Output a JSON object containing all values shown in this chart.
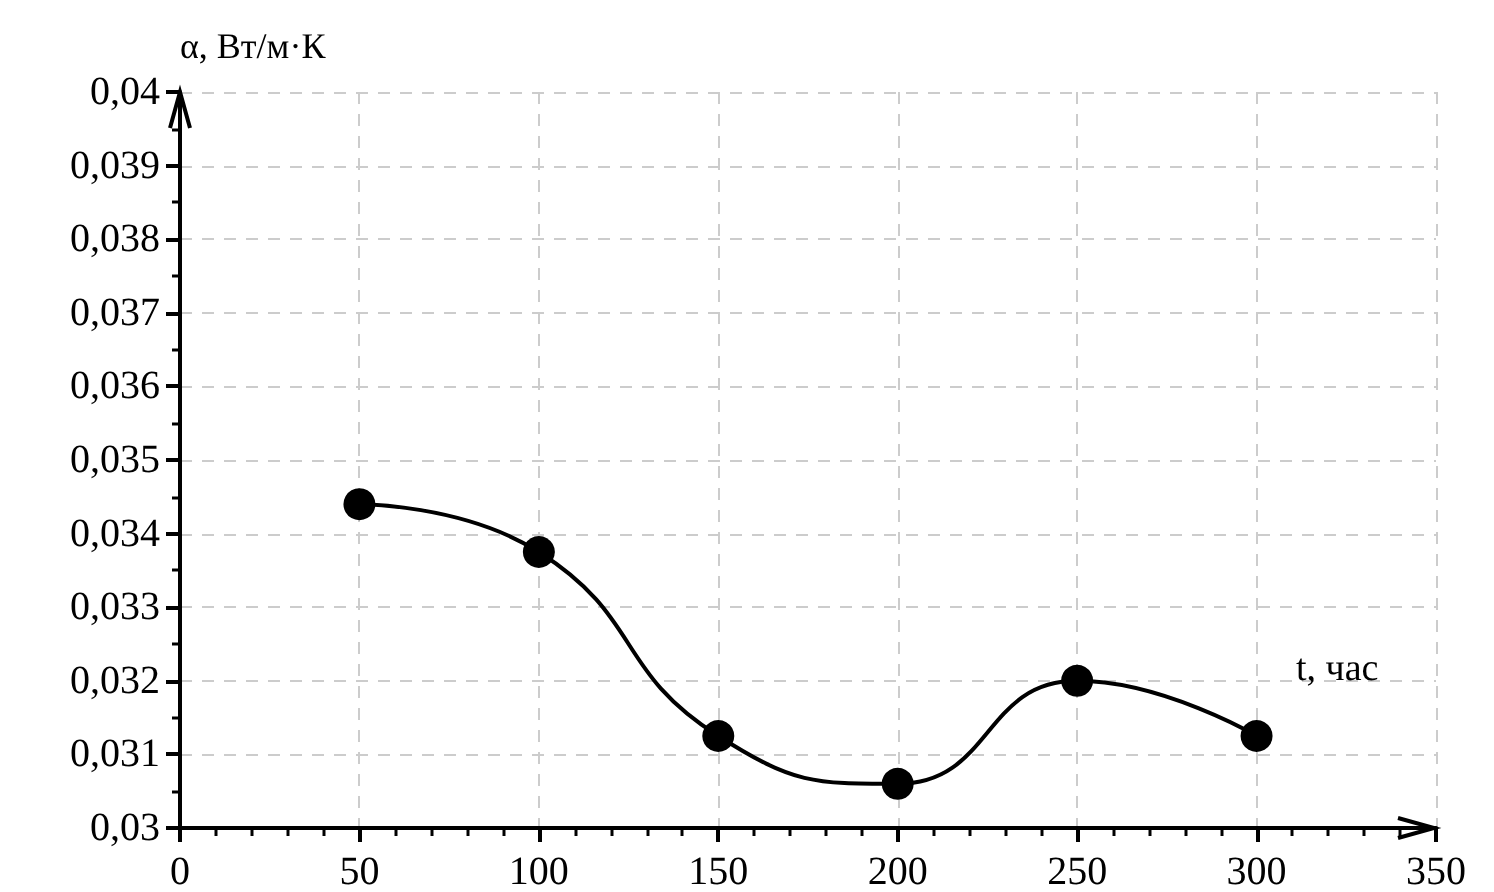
{
  "chart_data": {
    "type": "line",
    "xlabel": "t, час",
    "ylabel": "α, Вт/м·К",
    "x": [
      50,
      100,
      150,
      200,
      250,
      300
    ],
    "series": [
      {
        "color": "#000000",
        "values": [
          0.0344,
          0.03375,
          0.03125,
          0.0306,
          0.032,
          0.03125
        ]
      }
    ],
    "xlim": [
      0,
      350
    ],
    "xticks": [
      0,
      50,
      100,
      150,
      200,
      250,
      300,
      350
    ],
    "ylim": [
      0.03,
      0.04
    ],
    "yticks": [
      {
        "value": 0.03,
        "label": "0,03"
      },
      {
        "value": 0.031,
        "label": "0,031"
      },
      {
        "value": 0.032,
        "label": "0,032"
      },
      {
        "value": 0.033,
        "label": "0,033"
      },
      {
        "value": 0.034,
        "label": "0,034"
      },
      {
        "value": 0.035,
        "label": "0,035"
      },
      {
        "value": 0.036,
        "label": "0,036"
      },
      {
        "value": 0.037,
        "label": "0,037"
      },
      {
        "value": 0.038,
        "label": "0,038"
      },
      {
        "value": 0.039,
        "label": "0,039"
      },
      {
        "value": 0.04,
        "label": "0,04"
      }
    ],
    "grid": true,
    "marker": "circle",
    "line_style": "solid"
  }
}
